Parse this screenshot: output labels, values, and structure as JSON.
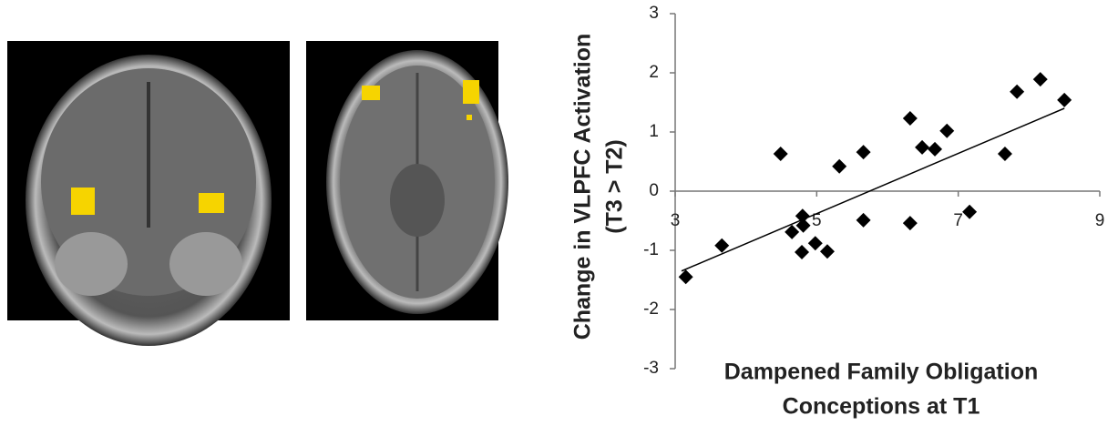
{
  "chart_data": {
    "type": "scatter",
    "xlabel": [
      "Dampened Family Obligation",
      "Conceptions at T1"
    ],
    "ylabel": [
      "Change in VLPFC Activation",
      "(T3 > T2)"
    ],
    "x": [
      3.15,
      3.66,
      4.49,
      4.65,
      4.8,
      4.81,
      4.79,
      4.98,
      5.15,
      5.32,
      5.66,
      5.66,
      6.32,
      6.32,
      6.49,
      6.67,
      6.84,
      7.16,
      7.66,
      7.83,
      8.16,
      8.5
    ],
    "values": [
      -1.45,
      -0.92,
      0.63,
      -0.69,
      -0.42,
      -0.58,
      -1.03,
      -0.88,
      -1.02,
      0.42,
      0.66,
      -0.49,
      1.23,
      -0.54,
      0.74,
      0.71,
      1.02,
      -0.35,
      0.63,
      1.68,
      1.89,
      1.54
    ],
    "color": "#000000",
    "trendline": {
      "x": [
        3.09,
        8.5
      ],
      "y": [
        -1.35,
        1.4
      ]
    },
    "xlim": [
      3,
      9
    ],
    "xticks": [
      3,
      5,
      7,
      9
    ],
    "ylim": [
      -3,
      3
    ],
    "yticks": [
      -3,
      -2,
      -1,
      0,
      1,
      2,
      3
    ]
  }
}
